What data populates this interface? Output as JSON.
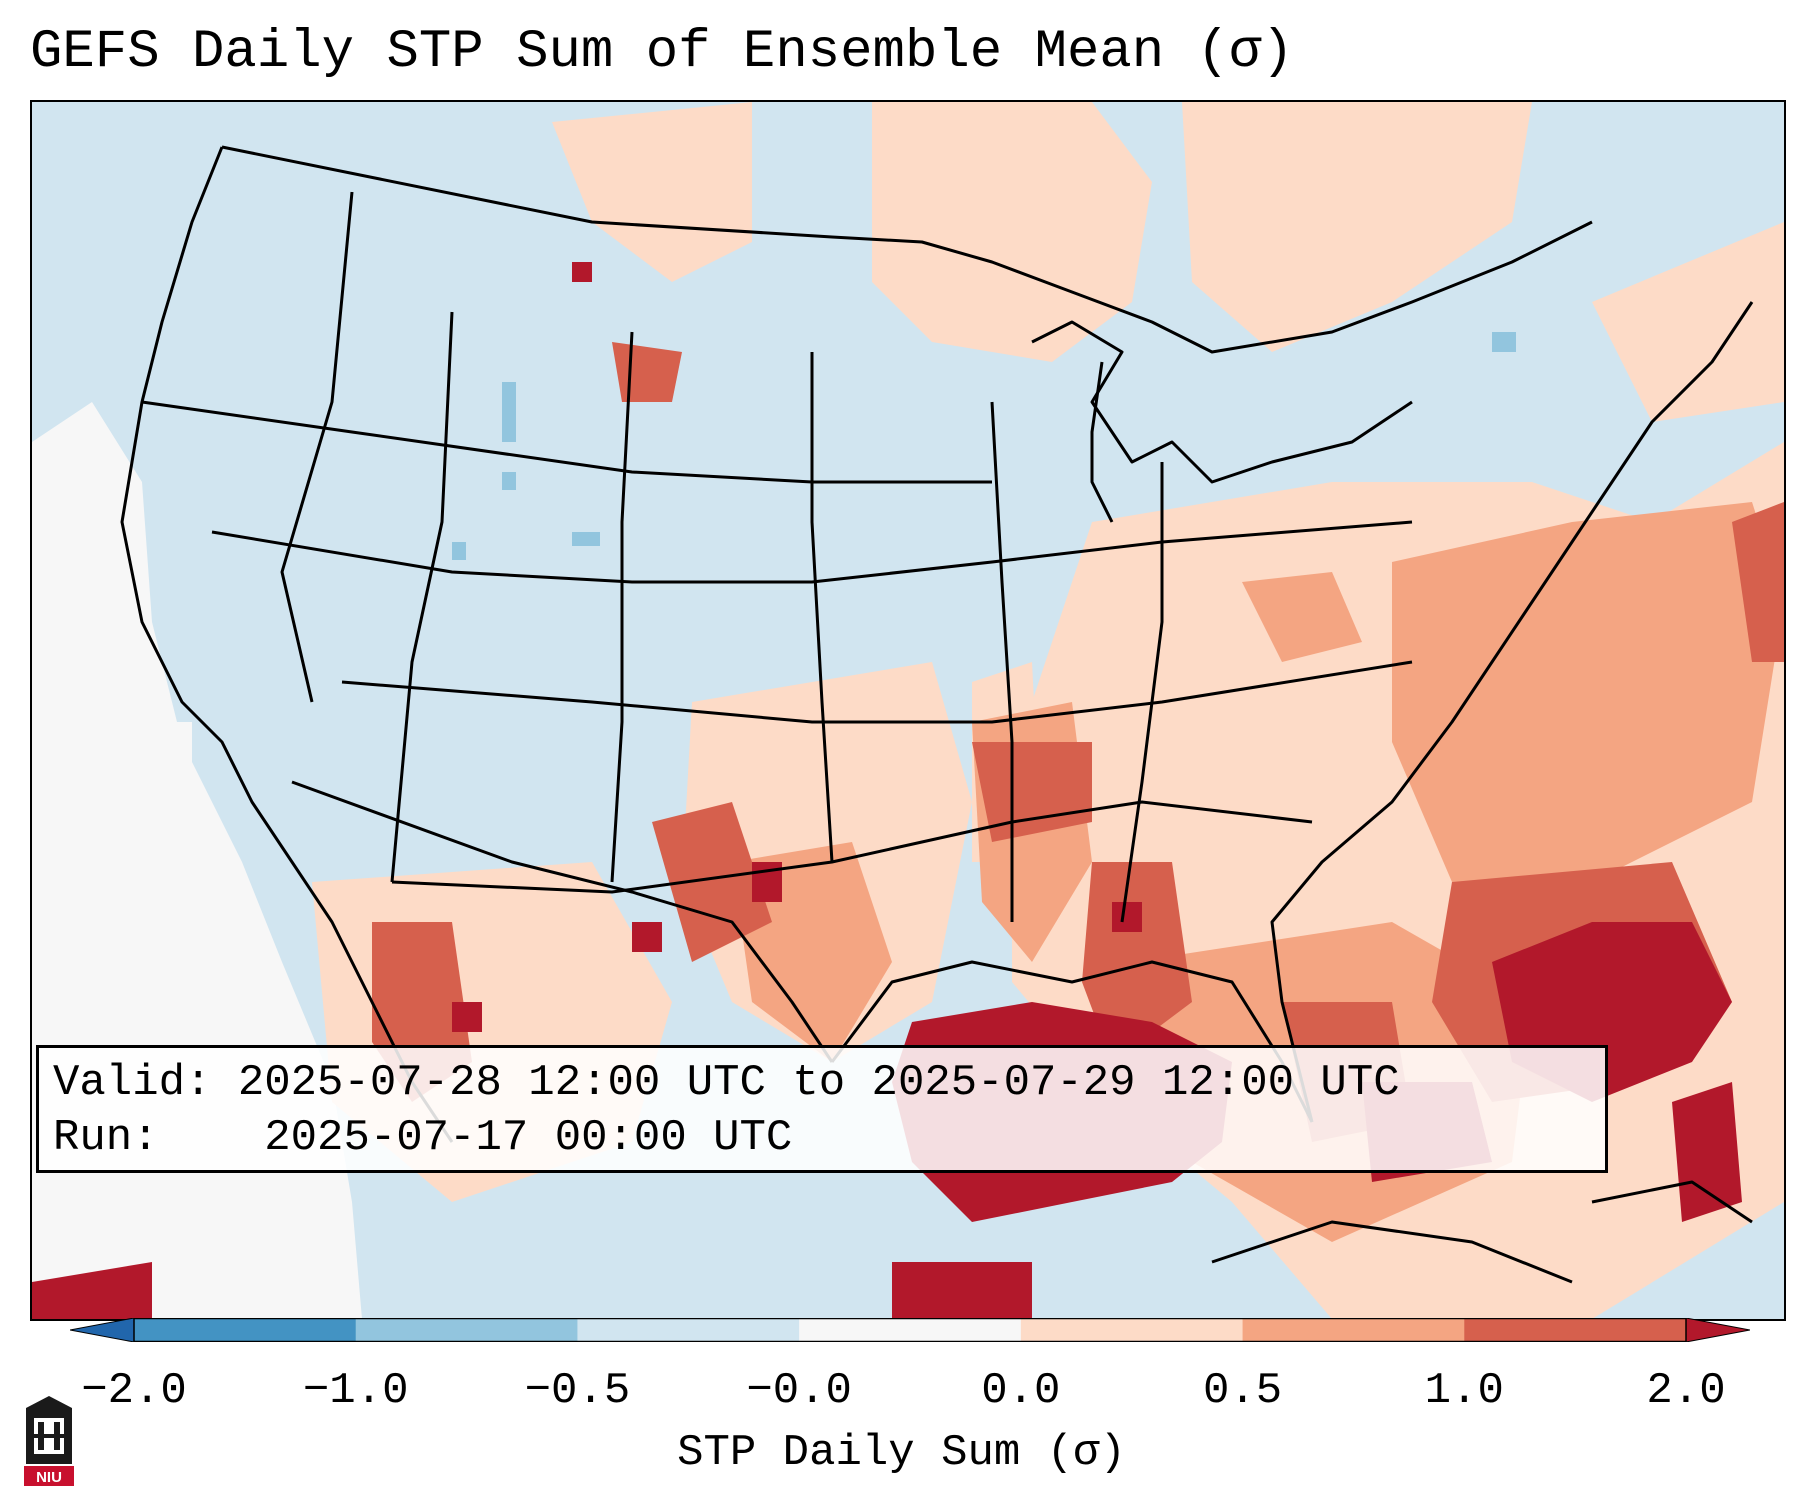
{
  "title": "GEFS Daily STP Sum of Ensemble Mean (σ)",
  "info": {
    "valid_label": "Valid:",
    "valid_value": "2025-07-28 12:00 UTC to 2025-07-29 12:00 UTC",
    "run_label": "Run:",
    "run_value": "2025-07-17 00:00 UTC"
  },
  "colorbar": {
    "label": "STP Daily Sum (σ)",
    "ticks": [
      "−2.0",
      "−1.0",
      "−0.5",
      "−0.0",
      "0.0",
      "0.5",
      "1.0",
      "2.0"
    ],
    "colors": [
      "#4393c3",
      "#92c5de",
      "#d1e5f0",
      "#f7f7f7",
      "#fddbc7",
      "#f4a582",
      "#d6604d"
    ],
    "under_color": "#2166ac",
    "over_color": "#b2182b"
  },
  "map": {
    "ocean_color": "#d1e5f0",
    "features": [
      {
        "name": "gulf-of-mexico-high",
        "level": "over",
        "color": "#b2182b"
      },
      {
        "name": "western-atlantic-high",
        "level": "over",
        "color": "#b2182b"
      },
      {
        "name": "lower-mississippi-valley",
        "level": "1.0-2.0",
        "color": "#d6604d"
      },
      {
        "name": "southwest-mexico-cells",
        "level": "1.0-2.0",
        "color": "#d6604d"
      },
      {
        "name": "eastern-us-moderate",
        "level": "0.5-1.0",
        "color": "#f4a582"
      },
      {
        "name": "pacific-clear-area",
        "level": "-0.0-0.0",
        "color": "#f7f7f7"
      }
    ]
  },
  "logo": {
    "text": "NIU",
    "color": "#c8102e"
  }
}
